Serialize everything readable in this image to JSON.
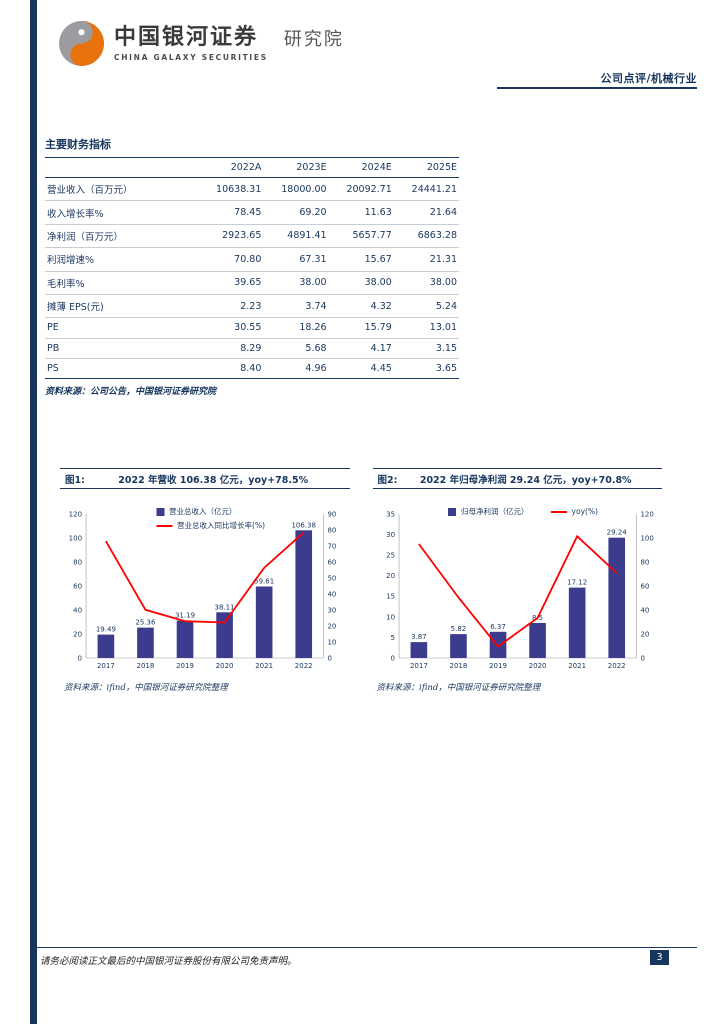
{
  "meta": {
    "navy": "#17365D",
    "bar_color": "#3C3C8F",
    "line_color": "#FF0000",
    "ink": "#3A3A3A",
    "logo_orange": "#E8730C",
    "logo_gray": "#9C9CA0",
    "logo_icon": "galaxy-swirl-logo"
  },
  "header": {
    "brand_cn": "中国银河证券",
    "brand_en": "CHINA GALAXY SECURITIES",
    "division": "研究院",
    "doc_type": "公司点评/机械行业"
  },
  "table": {
    "title": "主要财务指标",
    "columns": [
      "2022A",
      "2023E",
      "2024E",
      "2025E"
    ],
    "rows": [
      {
        "label": "营业收入（百万元）",
        "values": [
          "10638.31",
          "18000.00",
          "20092.71",
          "24441.21"
        ]
      },
      {
        "label": "收入增长率%",
        "values": [
          "78.45",
          "69.20",
          "11.63",
          "21.64"
        ]
      },
      {
        "label": "净利润（百万元）",
        "values": [
          "2923.65",
          "4891.41",
          "5657.77",
          "6863.28"
        ]
      },
      {
        "label": "利润增速%",
        "values": [
          "70.80",
          "67.31",
          "15.67",
          "21.31"
        ]
      },
      {
        "label": "毛利率%",
        "values": [
          "39.65",
          "38.00",
          "38.00",
          "38.00"
        ]
      },
      {
        "label": "摊薄 EPS(元)",
        "values": [
          "2.23",
          "3.74",
          "4.32",
          "5.24"
        ]
      },
      {
        "label": "PE",
        "values": [
          "30.55",
          "18.26",
          "15.79",
          "13.01"
        ]
      },
      {
        "label": "PB",
        "values": [
          "8.29",
          "5.68",
          "4.17",
          "3.15"
        ]
      },
      {
        "label": "PS",
        "values": [
          "8.40",
          "4.96",
          "4.45",
          "3.65"
        ]
      }
    ],
    "source": "资料来源：公司公告，中国银河证券研究院"
  },
  "chart_data": [
    {
      "type": "bar",
      "fig_label": "图1:",
      "title": "2022 年营收 106.38 亿元，yoy+78.5%",
      "categories": [
        "2017",
        "2018",
        "2019",
        "2020",
        "2021",
        "2022"
      ],
      "bar_series": {
        "name": "营业总收入（亿元）",
        "values": [
          19.49,
          25.36,
          31.19,
          38.11,
          59.61,
          106.38
        ],
        "value_labels": [
          "19.49",
          "25.36",
          "31.19",
          "38.11",
          "59.61",
          "106.38"
        ],
        "axis": "left"
      },
      "line_series": {
        "name": "营业总收入同比增长率(%)",
        "values": [
          73.0,
          30.1,
          23.0,
          22.2,
          56.4,
          78.5
        ],
        "axis": "right"
      },
      "y_left": {
        "min": 0,
        "max": 120,
        "step": 20
      },
      "y_right": {
        "min": 0,
        "max": 90,
        "step": 10
      },
      "legend_layout": "column",
      "grid": false,
      "source": "资料来源：ifind，中国银河证券研究院整理"
    },
    {
      "type": "bar",
      "fig_label": "图2:",
      "title": "2022 年归母净利润 29.24 亿元，yoy+70.8%",
      "categories": [
        "2017",
        "2018",
        "2019",
        "2020",
        "2021",
        "2022"
      ],
      "bar_series": {
        "name": "归母净利润（亿元）",
        "values": [
          3.87,
          5.82,
          6.37,
          8.5,
          17.12,
          29.24
        ],
        "value_labels": [
          "3.87",
          "5.82",
          "6.37",
          "8.5",
          "17.12",
          "29.24"
        ],
        "axis": "left"
      },
      "line_series": {
        "name": "yoy(%)",
        "values": [
          95.0,
          50.4,
          9.5,
          33.4,
          101.4,
          70.8
        ],
        "axis": "right"
      },
      "y_left": {
        "min": 0,
        "max": 35,
        "step": 5
      },
      "y_right": {
        "min": 0,
        "max": 120,
        "step": 20
      },
      "legend_layout": "row",
      "grid": false,
      "source": "资料来源：ifind，中国银河证券研究院整理"
    }
  ],
  "footer": {
    "disclaimer": "请务必阅读正文最后的中国银河证券股份有限公司免责声明。",
    "page_number": "3"
  }
}
